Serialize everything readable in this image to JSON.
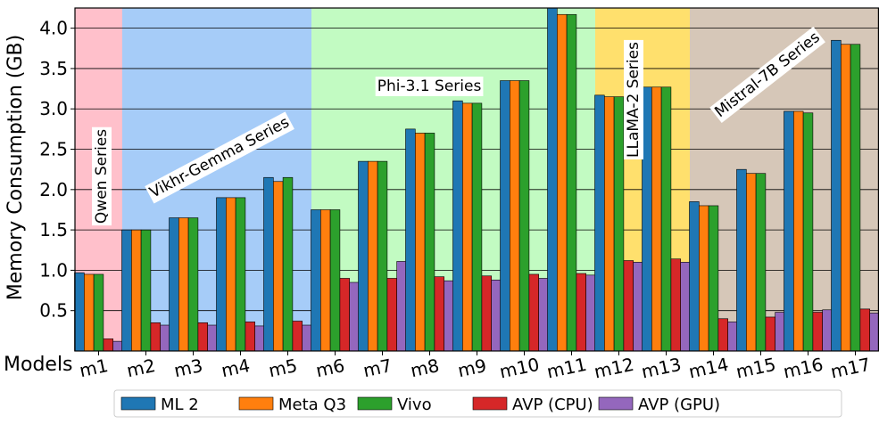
{
  "chart_data": {
    "type": "bar",
    "ylabel": "Memory Consumption (GB)",
    "xlabel": "Models",
    "ylim": [
      0,
      4.25
    ],
    "yticks": [
      0.5,
      1.0,
      1.5,
      2.0,
      2.5,
      3.0,
      3.5,
      4.0
    ],
    "ytick_labels": [
      "0.5",
      "1.0",
      "1.5",
      "2.0",
      "2.5",
      "3.0",
      "3.5",
      "4.0"
    ],
    "grid": "horizontal",
    "legend_position": "bottom",
    "categories": [
      "m1",
      "m2",
      "m3",
      "m4",
      "m5",
      "m6",
      "m7",
      "m8",
      "m9",
      "m10",
      "m11",
      "m12",
      "m13",
      "m14",
      "m15",
      "m16",
      "m17"
    ],
    "series": [
      {
        "name": "ML 2",
        "color": "#1f77b4",
        "values": [
          0.97,
          1.5,
          1.65,
          1.9,
          2.15,
          1.75,
          2.35,
          2.75,
          3.1,
          3.35,
          4.25,
          3.17,
          3.27,
          1.85,
          2.25,
          2.97,
          3.85
        ]
      },
      {
        "name": "Meta Q3",
        "color": "#ff7f0e",
        "values": [
          0.95,
          1.5,
          1.65,
          1.9,
          2.1,
          1.75,
          2.35,
          2.7,
          3.07,
          3.35,
          4.17,
          3.15,
          3.27,
          1.8,
          2.2,
          2.97,
          3.8
        ]
      },
      {
        "name": "Vivo",
        "color": "#2ca02c",
        "values": [
          0.95,
          1.5,
          1.65,
          1.9,
          2.15,
          1.75,
          2.35,
          2.7,
          3.07,
          3.35,
          4.17,
          3.15,
          3.27,
          1.8,
          2.2,
          2.95,
          3.8
        ]
      },
      {
        "name": "AVP (CPU)",
        "color": "#d62728",
        "values": [
          0.15,
          0.35,
          0.35,
          0.36,
          0.37,
          0.9,
          0.9,
          0.92,
          0.93,
          0.95,
          0.96,
          1.12,
          1.14,
          0.4,
          0.42,
          0.48,
          0.52
        ]
      },
      {
        "name": "AVP (GPU)",
        "color": "#9467bd",
        "values": [
          0.12,
          0.32,
          0.32,
          0.31,
          0.32,
          0.85,
          1.11,
          0.87,
          0.88,
          0.9,
          0.94,
          1.1,
          1.1,
          0.36,
          0.48,
          0.51,
          0.47
        ]
      }
    ],
    "groups": [
      {
        "label": "Qwen Series",
        "start": 0,
        "end": 0,
        "color": "#ffc0cb"
      },
      {
        "label": "Vikhr-Gemma Series",
        "start": 1,
        "end": 4,
        "color": "#a6ccf8"
      },
      {
        "label": "Phi-3.1 Series",
        "start": 5,
        "end": 10,
        "color": "#c2fbc2"
      },
      {
        "label": "LLaMA-2 Series",
        "start": 11,
        "end": 12,
        "color": "#ffe06d"
      },
      {
        "label": "Mistral-7B Series",
        "start": 13,
        "end": 16,
        "color": "#d6c7b8"
      }
    ]
  }
}
